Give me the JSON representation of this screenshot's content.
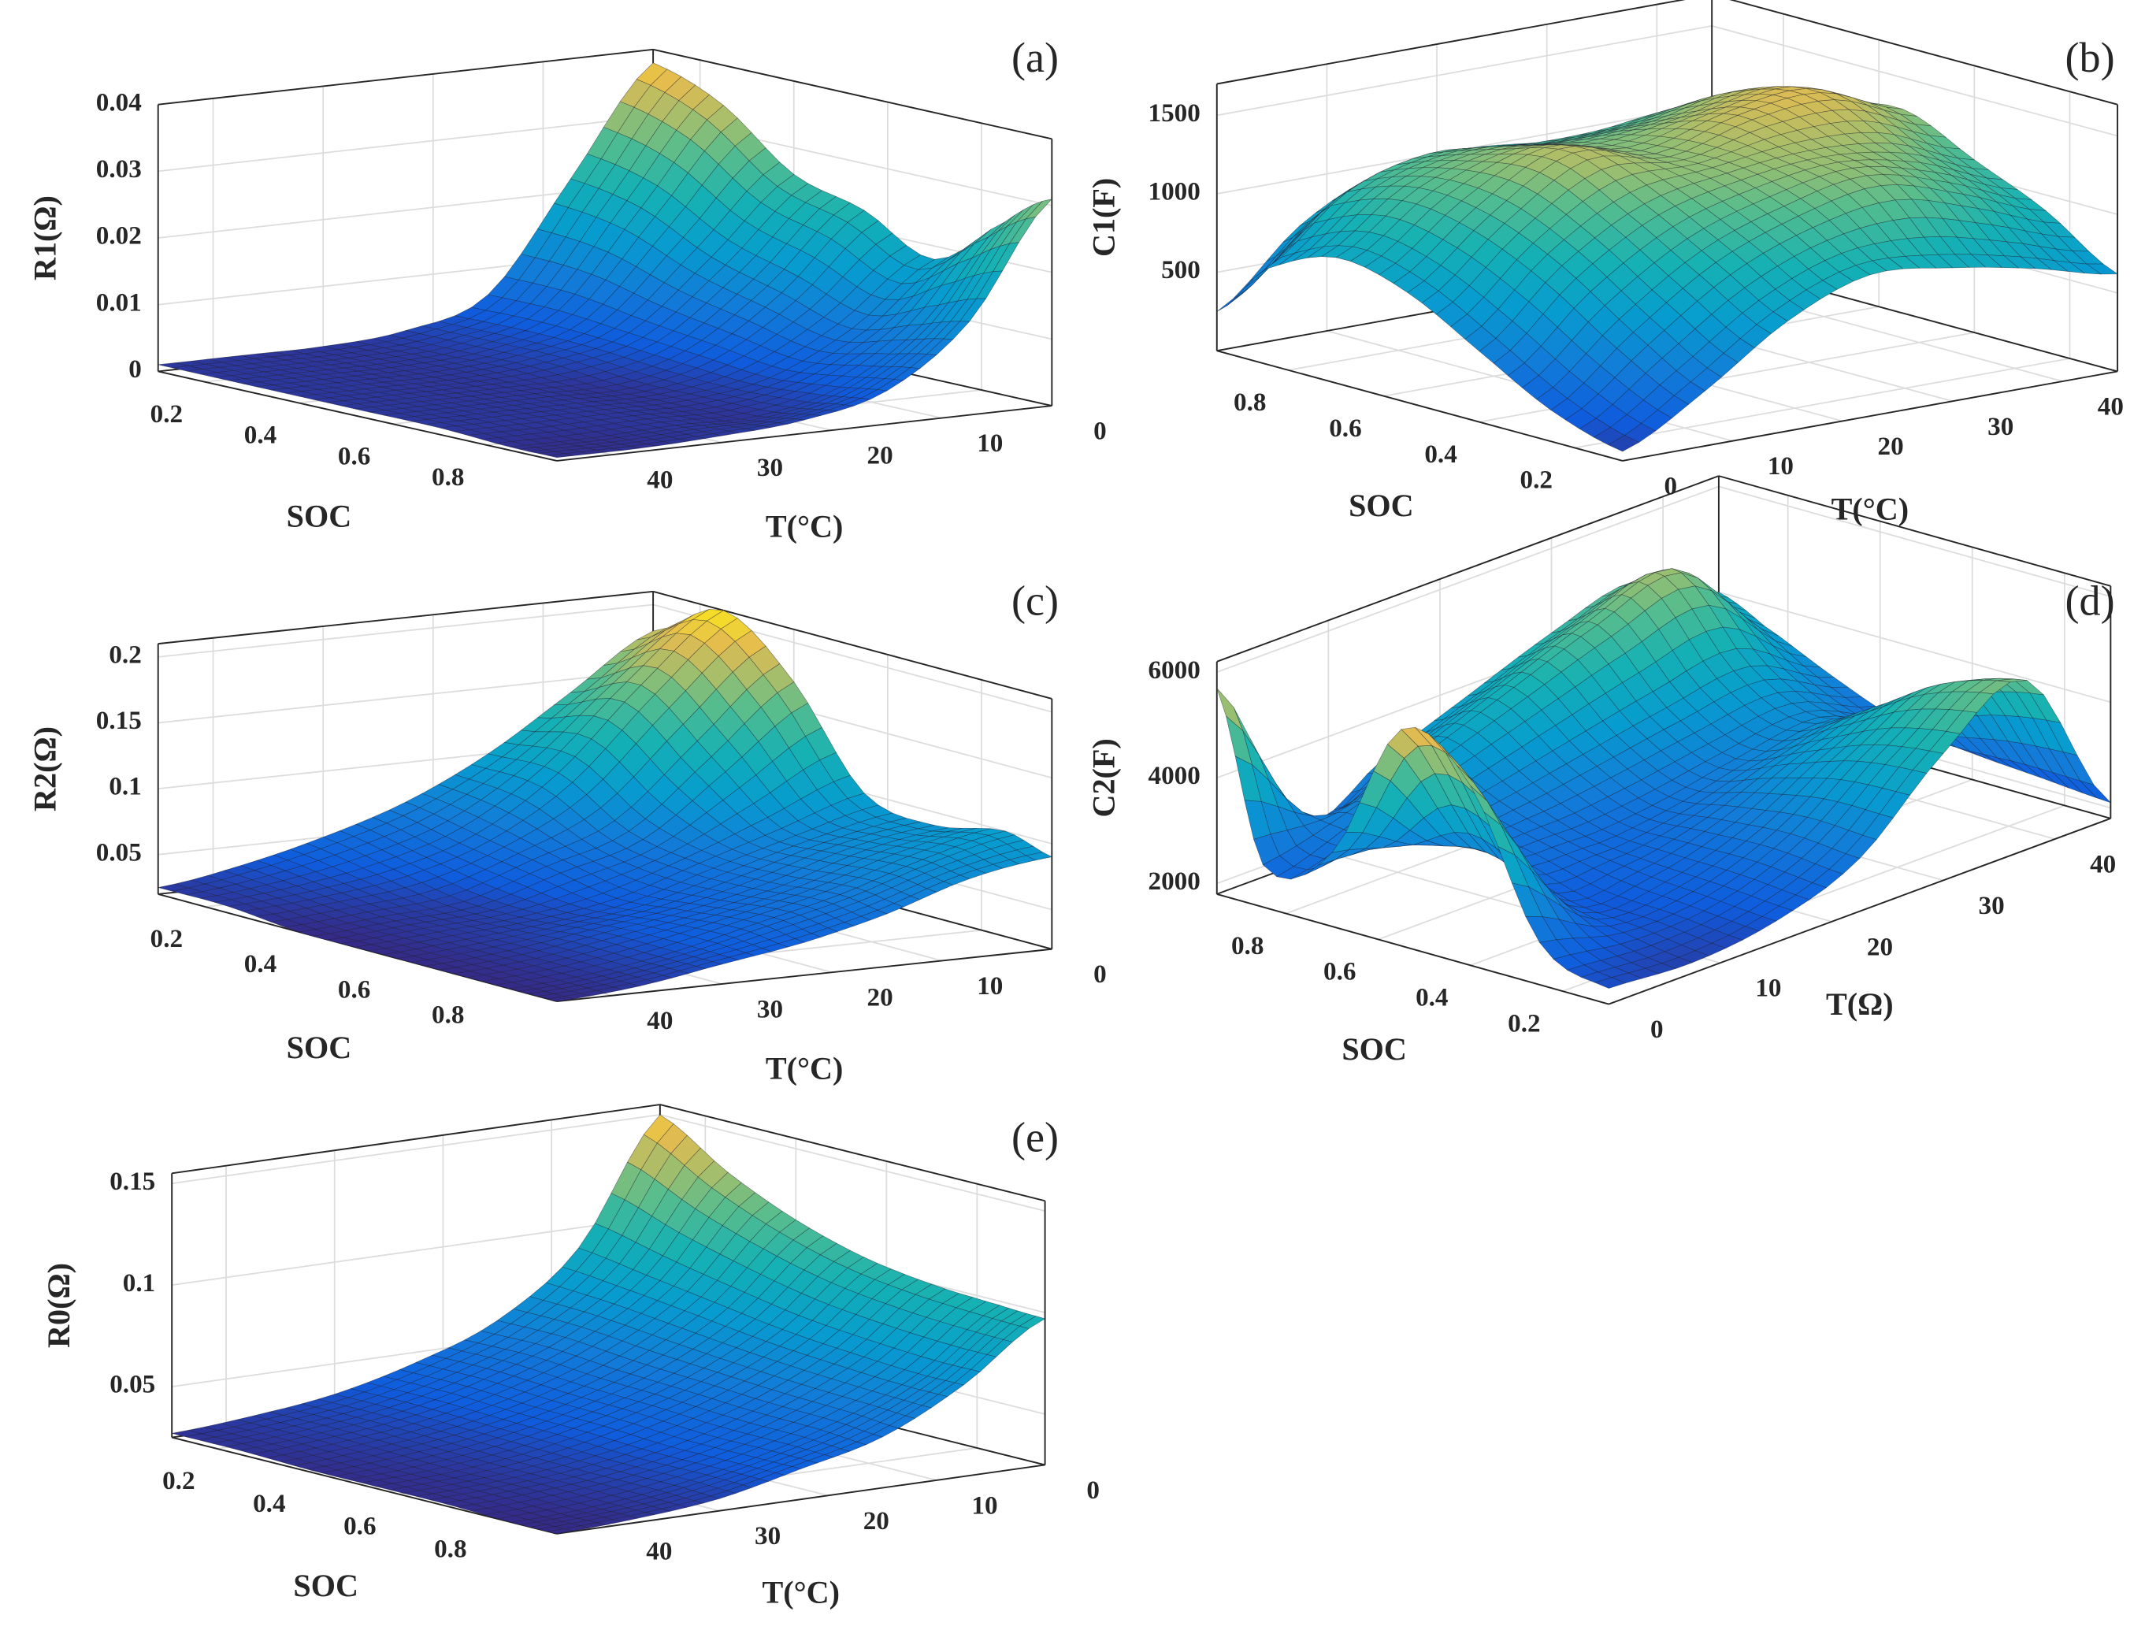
{
  "chart_data": [
    {
      "type": "surface",
      "panel_label": "(a)",
      "xlabel": "SOC",
      "ylabel": "T(°C)",
      "zlabel": "R1(Ω)",
      "x": [
        0.1,
        0.25,
        0.4,
        0.55,
        0.7,
        0.85,
        0.95
      ],
      "y": [
        0,
        7.5,
        15,
        22.5,
        30,
        37.5,
        45
      ],
      "z": [
        [
          0.038,
          0.022,
          0.006,
          0.002,
          0.001,
          0.001,
          0.001
        ],
        [
          0.034,
          0.02,
          0.006,
          0.002,
          0.001,
          0.001,
          0.001
        ],
        [
          0.026,
          0.015,
          0.005,
          0.002,
          0.001,
          0.001,
          0.001
        ],
        [
          0.023,
          0.012,
          0.004,
          0.001,
          0.001,
          0.001,
          0.001
        ],
        [
          0.018,
          0.009,
          0.003,
          0.001,
          0.001,
          0.001,
          0.001
        ],
        [
          0.026,
          0.012,
          0.004,
          0.001,
          0.001,
          0.0005,
          0.0005
        ],
        [
          0.031,
          0.014,
          0.005,
          0.002,
          0.001,
          0.0005,
          0.0005
        ]
      ],
      "xlim": [
        0.1,
        0.95
      ],
      "ylim": [
        0,
        45
      ],
      "zlim": [
        0,
        0.04
      ],
      "xticks": [
        0.2,
        0.4,
        0.6,
        0.8
      ],
      "yticks": [
        0,
        10,
        20,
        30,
        40
      ],
      "zticks": [
        0,
        0.01,
        0.02,
        0.03,
        0.04
      ],
      "grid": true,
      "colormap": "parula"
    },
    {
      "type": "surface",
      "panel_label": "(b)",
      "xlabel": "SOC",
      "ylabel": "T(°C)",
      "zlabel": "C1(F)",
      "x": [
        0.1,
        0.25,
        0.4,
        0.55,
        0.7,
        0.85,
        0.95
      ],
      "y": [
        0,
        7.5,
        15,
        22.5,
        30,
        37.5,
        45
      ],
      "z": [
        [
          60,
          350,
          700,
          900,
          850,
          750,
          620
        ],
        [
          200,
          600,
          950,
          1150,
          1250,
          1100,
          900
        ],
        [
          450,
          900,
          1200,
          1300,
          1350,
          1300,
          1100
        ],
        [
          700,
          1100,
          1400,
          1300,
          1450,
          1500,
          1300
        ],
        [
          800,
          1150,
          1300,
          1250,
          1300,
          1400,
          1200
        ],
        [
          600,
          1000,
          1150,
          1100,
          1100,
          1150,
          1050
        ],
        [
          250,
          700,
          950,
          1000,
          950,
          900,
          850
        ]
      ],
      "xlim": [
        0.1,
        0.95
      ],
      "ylim": [
        0,
        45
      ],
      "zlim": [
        0,
        1700
      ],
      "xticks": [
        0.2,
        0.4,
        0.6,
        0.8
      ],
      "yticks": [
        0,
        10,
        20,
        30,
        40
      ],
      "zticks": [
        500,
        1000,
        1500
      ],
      "grid": true,
      "colormap": "parula"
    },
    {
      "type": "surface",
      "panel_label": "(c)",
      "xlabel": "SOC",
      "ylabel": "T(°C)",
      "zlabel": "R2(Ω)",
      "x": [
        0.1,
        0.25,
        0.4,
        0.55,
        0.7,
        0.85,
        0.95
      ],
      "y": [
        0,
        7.5,
        15,
        22.5,
        30,
        37.5,
        45
      ],
      "z": [
        [
          0.18,
          0.14,
          0.1,
          0.07,
          0.05,
          0.035,
          0.025
        ],
        [
          0.21,
          0.16,
          0.1,
          0.06,
          0.04,
          0.03,
          0.025
        ],
        [
          0.17,
          0.12,
          0.07,
          0.05,
          0.03,
          0.025,
          0.02
        ],
        [
          0.1,
          0.08,
          0.06,
          0.04,
          0.03,
          0.025,
          0.02
        ],
        [
          0.09,
          0.08,
          0.06,
          0.045,
          0.035,
          0.025,
          0.02
        ],
        [
          0.1,
          0.085,
          0.065,
          0.05,
          0.035,
          0.025,
          0.02
        ],
        [
          0.09,
          0.08,
          0.06,
          0.045,
          0.035,
          0.025,
          0.02
        ]
      ],
      "xlim": [
        0.1,
        0.95
      ],
      "ylim": [
        0,
        45
      ],
      "zlim": [
        0.02,
        0.21
      ],
      "xticks": [
        0.2,
        0.4,
        0.6,
        0.8
      ],
      "yticks": [
        0,
        10,
        20,
        30,
        40
      ],
      "zticks": [
        0.05,
        0.1,
        0.15,
        0.2
      ],
      "grid": true,
      "colormap": "parula"
    },
    {
      "type": "surface",
      "panel_label": "(d)",
      "xlabel": "SOC",
      "ylabel": "T(Ω)",
      "zlabel": "C2(F)",
      "x": [
        0.1,
        0.25,
        0.4,
        0.55,
        0.7,
        0.85,
        0.95
      ],
      "y": [
        0,
        7.5,
        15,
        22.5,
        30,
        37.5,
        45
      ],
      "z": [
        [
          2100,
          2000,
          2200,
          2800,
          4200,
          5000,
          2100
        ],
        [
          2600,
          2200,
          2300,
          2900,
          4000,
          4600,
          2200
        ],
        [
          5200,
          2500,
          2400,
          2800,
          3500,
          3800,
          2300
        ],
        [
          5900,
          3000,
          2600,
          2700,
          3000,
          3200,
          2500
        ],
        [
          3200,
          2800,
          3000,
          3300,
          3600,
          3800,
          3000
        ],
        [
          2600,
          3000,
          3600,
          4200,
          4800,
          5200,
          3600
        ],
        [
          5700,
          2600,
          3200,
          3800,
          4400,
          4800,
          4000
        ]
      ],
      "xlim": [
        0.1,
        0.95
      ],
      "ylim": [
        0,
        45
      ],
      "zlim": [
        1800,
        6200
      ],
      "xticks": [
        0.2,
        0.4,
        0.6,
        0.8
      ],
      "yticks": [
        0,
        10,
        20,
        30,
        40
      ],
      "zticks": [
        2000,
        4000,
        6000
      ],
      "grid": true,
      "colormap": "parula"
    },
    {
      "type": "surface",
      "panel_label": "(e)",
      "xlabel": "SOC",
      "ylabel": "T(°C)",
      "zlabel": "R0(Ω)",
      "x": [
        0.1,
        0.25,
        0.4,
        0.55,
        0.7,
        0.85,
        0.95
      ],
      "y": [
        0,
        7.5,
        15,
        22.5,
        30,
        37.5,
        45
      ],
      "z": [
        [
          0.15,
          0.09,
          0.06,
          0.045,
          0.035,
          0.03,
          0.027
        ],
        [
          0.13,
          0.085,
          0.06,
          0.045,
          0.035,
          0.03,
          0.027
        ],
        [
          0.115,
          0.08,
          0.057,
          0.043,
          0.034,
          0.029,
          0.026
        ],
        [
          0.105,
          0.075,
          0.055,
          0.042,
          0.033,
          0.028,
          0.026
        ],
        [
          0.1,
          0.072,
          0.053,
          0.04,
          0.032,
          0.028,
          0.026
        ],
        [
          0.098,
          0.07,
          0.052,
          0.04,
          0.032,
          0.027,
          0.025
        ],
        [
          0.097,
          0.07,
          0.05,
          0.04,
          0.031,
          0.027,
          0.025
        ]
      ],
      "xlim": [
        0.1,
        0.95
      ],
      "ylim": [
        0,
        45
      ],
      "zlim": [
        0.025,
        0.155
      ],
      "xticks": [
        0.2,
        0.4,
        0.6,
        0.8
      ],
      "yticks": [
        0,
        10,
        20,
        30,
        40
      ],
      "zticks": [
        0.05,
        0.1,
        0.15
      ],
      "grid": true,
      "colormap": "parula"
    }
  ]
}
